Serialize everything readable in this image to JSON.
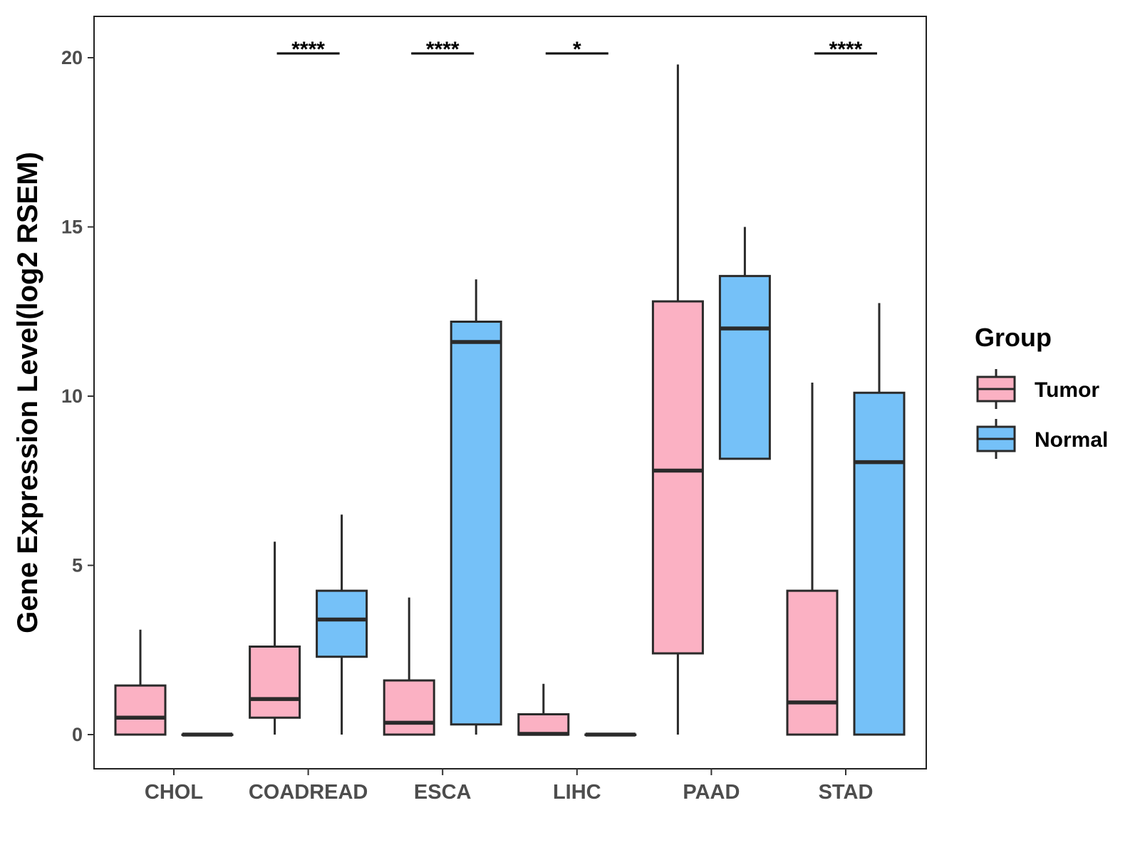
{
  "chart_data": {
    "type": "boxplot",
    "title": "",
    "xlabel": "",
    "ylabel": "Gene Expression Level(log2 RSEM)",
    "ylim": [
      -1,
      21.2
    ],
    "yticks": [
      0,
      5,
      10,
      15,
      20
    ],
    "ytick_labels": [
      "0",
      "5",
      "10",
      "15",
      "20"
    ],
    "grid": false,
    "categories": [
      "CHOL",
      "COADREAD",
      "ESCA",
      "LIHC",
      "PAAD",
      "STAD"
    ],
    "legend": {
      "title": "Group",
      "position": "right",
      "entries": [
        {
          "label": "Tumor",
          "color": "#FBB1C3"
        },
        {
          "label": "Normal",
          "color": "#75C1F8"
        }
      ]
    },
    "series": [
      {
        "name": "Tumor",
        "color": "#FBB1C3",
        "boxes": [
          {
            "min": 0,
            "q1": 0,
            "median": 0.5,
            "q3": 1.45,
            "max": 3.1
          },
          {
            "min": 0,
            "q1": 0.5,
            "median": 1.05,
            "q3": 2.6,
            "max": 5.7
          },
          {
            "min": 0,
            "q1": 0,
            "median": 0.35,
            "q3": 1.6,
            "max": 4.05
          },
          {
            "min": 0,
            "q1": 0,
            "median": 0.02,
            "q3": 0.6,
            "max": 1.5
          },
          {
            "min": 0,
            "q1": 2.4,
            "median": 7.8,
            "q3": 12.8,
            "max": 19.8
          },
          {
            "min": 0,
            "q1": 0,
            "median": 0.95,
            "q3": 4.25,
            "max": 10.4
          }
        ]
      },
      {
        "name": "Normal",
        "color": "#75C1F8",
        "boxes": [
          {
            "min": 0,
            "q1": 0,
            "median": 0,
            "q3": 0,
            "max": 0
          },
          {
            "min": 0,
            "q1": 2.3,
            "median": 3.4,
            "q3": 4.25,
            "max": 6.5
          },
          {
            "min": 0,
            "q1": 0.3,
            "median": 11.6,
            "q3": 12.2,
            "max": 13.45
          },
          {
            "min": 0,
            "q1": 0,
            "median": 0,
            "q3": 0,
            "max": 0
          },
          {
            "min": 8.15,
            "q1": 8.15,
            "median": 12.0,
            "q3": 13.55,
            "max": 15.0
          },
          {
            "min": 0,
            "q1": 0,
            "median": 8.05,
            "q3": 10.1,
            "max": 12.75
          }
        ]
      }
    ],
    "annotations": [
      {
        "category": "CHOL",
        "label": ""
      },
      {
        "category": "COADREAD",
        "label": "****"
      },
      {
        "category": "ESCA",
        "label": "****"
      },
      {
        "category": "LIHC",
        "label": "*"
      },
      {
        "category": "PAAD",
        "label": ""
      },
      {
        "category": "STAD",
        "label": "****"
      }
    ]
  }
}
